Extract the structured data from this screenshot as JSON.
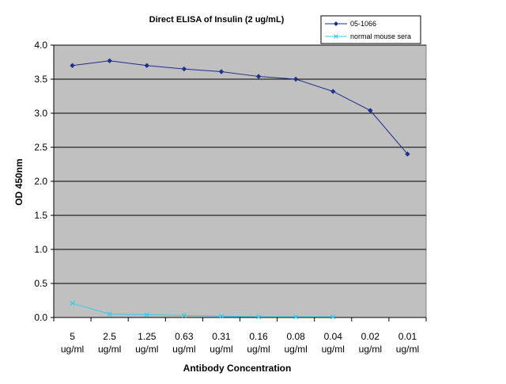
{
  "chart_data": {
    "type": "line",
    "title": "Direct ELISA of Insulin (2 ug/mL)",
    "xlabel": "Antibody Concentration",
    "ylabel": "OD 450nm",
    "ylim": [
      0,
      4.0
    ],
    "yticks": [
      "0.0",
      "0.5",
      "1.0",
      "1.5",
      "2.0",
      "2.5",
      "3.0",
      "3.5",
      "4.0"
    ],
    "categories": [
      {
        "line1": "5",
        "line2": "ug/ml"
      },
      {
        "line1": "2.5",
        "line2": "ug/ml"
      },
      {
        "line1": "1.25",
        "line2": "ug/ml"
      },
      {
        "line1": "0.63",
        "line2": "ug/ml"
      },
      {
        "line1": "0.31",
        "line2": "ug/ml"
      },
      {
        "line1": "0.16",
        "line2": "ug/ml"
      },
      {
        "line1": "0.08",
        "line2": "ug/ml"
      },
      {
        "line1": "0.04",
        "line2": "ug/ml"
      },
      {
        "line1": "0.02",
        "line2": "ug/ml"
      },
      {
        "line1": "0.01",
        "line2": "ug/ml"
      }
    ],
    "series": [
      {
        "name": "05-1066",
        "color": "#1f2f8a",
        "marker": "diamond",
        "values": [
          3.7,
          3.77,
          3.7,
          3.65,
          3.61,
          3.54,
          3.5,
          3.32,
          3.04,
          2.4
        ]
      },
      {
        "name": "normal mouse sera",
        "color": "#33ccee",
        "marker": "x",
        "values": [
          0.21,
          0.05,
          0.04,
          0.03,
          0.02,
          0.01,
          0.01,
          0.01,
          null,
          null
        ]
      }
    ],
    "grid": true,
    "legend_position": "top-right",
    "plot_background": "#c0c0c0"
  }
}
